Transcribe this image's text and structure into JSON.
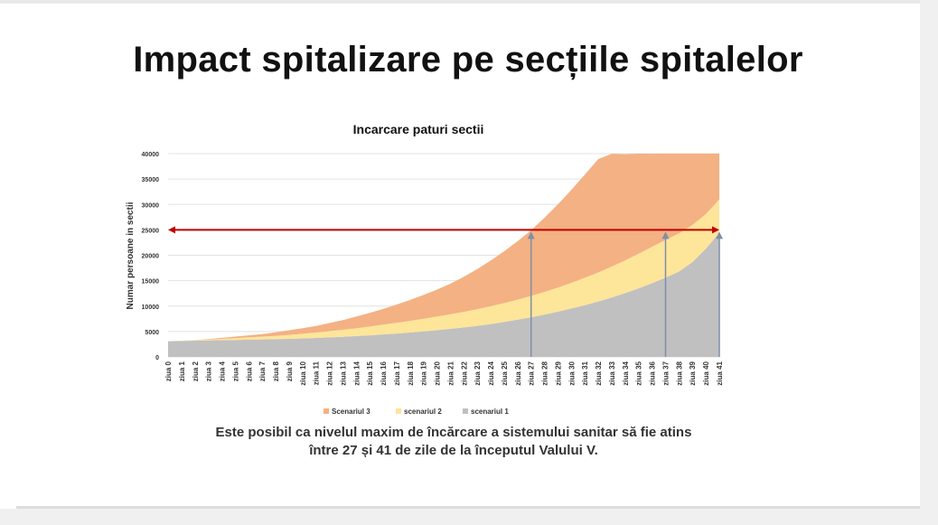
{
  "slide": {
    "title": "Impact spitalizare pe secțiile spitalelor",
    "caption_line1": "Este posibil ca nivelul maxim de încărcare a sistemului sanitar să fie atins",
    "caption_line2": "între 27 și 41 de zile de la începutul Valului V."
  },
  "chart_data": {
    "type": "area",
    "stacked": true,
    "title": "Incarcare paturi sectii",
    "ylabel": "Numar persoane in sectii",
    "xlabel": "",
    "ylim": [
      0,
      40000
    ],
    "yticks": [
      0,
      5000,
      10000,
      15000,
      20000,
      25000,
      30000,
      35000,
      40000
    ],
    "grid": "horizontal",
    "legend_position": "bottom",
    "categories": [
      "ziua 0",
      "ziua 1",
      "ziua 2",
      "ziua 3",
      "ziua 4",
      "ziua 5",
      "ziua 6",
      "ziua 7",
      "ziua 8",
      "ziua 9",
      "ziua 10",
      "ziua 11",
      "ziua 12",
      "ziua 13",
      "ziua 14",
      "ziua 15",
      "ziua 16",
      "ziua 17",
      "ziua 18",
      "ziua 19",
      "ziua 20",
      "ziua 21",
      "ziua 22",
      "ziua 23",
      "ziua 24",
      "ziua 25",
      "ziua 26",
      "ziua 27",
      "ziua 28",
      "ziua 29",
      "ziua 30",
      "ziua 31",
      "ziua 32",
      "ziua 33",
      "ziua 34",
      "ziua 35",
      "ziua 36",
      "ziua 37",
      "ziua 38",
      "ziua 39",
      "ziua 40",
      "ziua 41"
    ],
    "series": [
      {
        "name": "scenariul 1",
        "color": "#c0c0c0",
        "values": [
          3100,
          3150,
          3200,
          3250,
          3300,
          3350,
          3400,
          3450,
          3500,
          3560,
          3640,
          3730,
          3840,
          3960,
          4100,
          4250,
          4420,
          4600,
          4800,
          5020,
          5260,
          5520,
          5800,
          6120,
          6480,
          6880,
          7320,
          7800,
          8330,
          8900,
          9520,
          10190,
          10910,
          11700,
          12560,
          13490,
          14500,
          15600,
          16800,
          18650,
          21300,
          24400
        ]
      },
      {
        "name": "scenariul 2",
        "color": "#fde59a",
        "values": [
          0,
          50,
          100,
          150,
          250,
          350,
          450,
          550,
          650,
          780,
          920,
          1070,
          1220,
          1380,
          1550,
          1730,
          1920,
          2110,
          2300,
          2480,
          2680,
          2880,
          3080,
          3280,
          3500,
          3720,
          3960,
          4200,
          4470,
          4750,
          5060,
          5380,
          5720,
          6080,
          6440,
          6810,
          7180,
          7400,
          7500,
          7300,
          6800,
          6600
        ]
      },
      {
        "name": "Scenariul 3",
        "color": "#f4b183",
        "values": [
          0,
          0,
          0,
          100,
          200,
          300,
          400,
          500,
          700,
          900,
          1100,
          1300,
          1600,
          1900,
          2300,
          2700,
          3100,
          3600,
          4100,
          4700,
          5300,
          6000,
          6900,
          7900,
          9000,
          10200,
          11500,
          12900,
          14600,
          16400,
          18300,
          20300,
          22300,
          22200,
          20900,
          19700,
          18300,
          17200,
          15700,
          14050,
          11900,
          9000
        ]
      }
    ],
    "legend": [
      "Scenariul 3",
      "scenariul 2",
      "scenariul 1"
    ],
    "annotations": {
      "threshold_value": 25000,
      "threshold_color": "#c00000",
      "arrow_color": "#7f8fa6",
      "arrow_days": [
        "ziua 27",
        "ziua 37",
        "ziua 41"
      ]
    }
  }
}
